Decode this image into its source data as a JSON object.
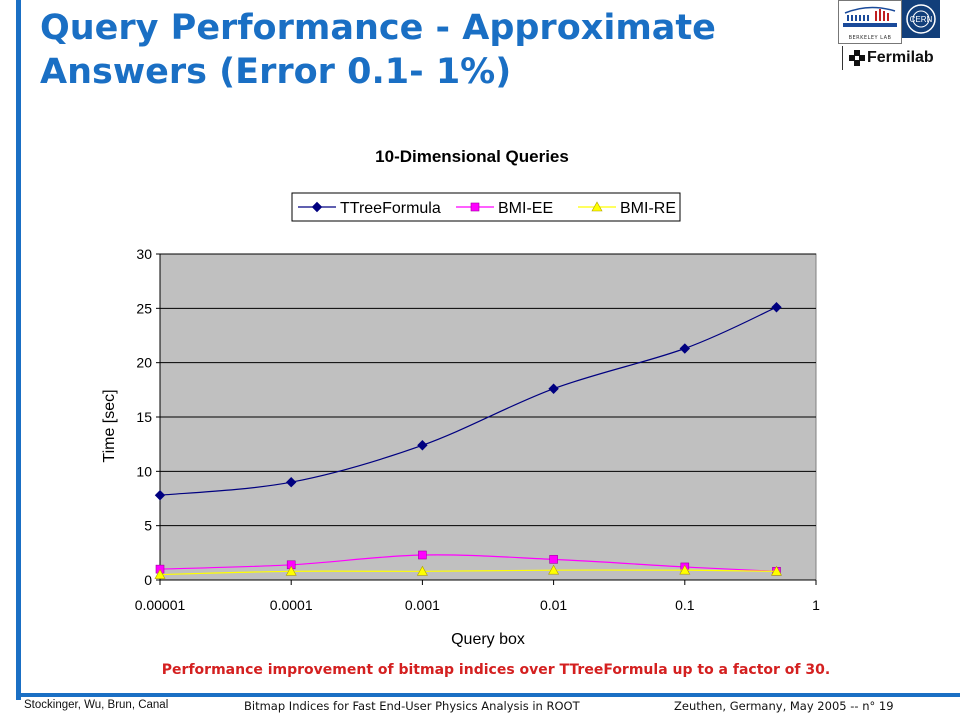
{
  "slide": {
    "title_line1": "Query Performance - Approximate",
    "title_line2": "Answers (Error 0.1- 1%)",
    "caption": "Performance improvement of bitmap indices over TTreeFormula up to a factor of 30.",
    "footer_left": "Stockinger, Wu, Brun, Canal",
    "footer_center": "Bitmap Indices for Fast End-User Physics Analysis in ROOT",
    "footer_right": "Zeuthen, Germany, May 2005  -- n° 19",
    "accent_color": "#1a6fc4",
    "caption_color": "#d42020"
  },
  "logos": {
    "berkeley_text": "BERKELEY LAB",
    "cern_text": "CERN",
    "fermilab_text": "Fermilab"
  },
  "chart_data": {
    "type": "line",
    "title": "10-Dimensional Queries",
    "xlabel": "Query box",
    "ylabel": "Time [sec]",
    "x_scale": "log",
    "xlim": [
      1e-05,
      1
    ],
    "ylim": [
      0,
      30
    ],
    "x_ticks": [
      "0.00001",
      "0.0001",
      "0.001",
      "0.01",
      "0.1",
      "1"
    ],
    "y_ticks": [
      "0",
      "5",
      "10",
      "15",
      "20",
      "25",
      "30"
    ],
    "x": [
      1e-05,
      0.0001,
      0.001,
      0.01,
      0.1,
      0.5
    ],
    "grid": "horizontal",
    "plot_background": "#c0c0c0",
    "legend_position": "top",
    "series": [
      {
        "name": "TTreeFormula",
        "color": "#000080",
        "marker": "diamond",
        "values": [
          7.8,
          9.0,
          12.4,
          17.6,
          21.3,
          25.1
        ]
      },
      {
        "name": "BMI-EE",
        "color": "#ff00ff",
        "marker": "square",
        "values": [
          1.0,
          1.4,
          2.3,
          1.9,
          1.2,
          0.8
        ]
      },
      {
        "name": "BMI-RE",
        "color": "#ffff00",
        "marker": "triangle",
        "values": [
          0.5,
          0.8,
          0.8,
          0.9,
          0.9,
          0.8
        ]
      }
    ]
  }
}
